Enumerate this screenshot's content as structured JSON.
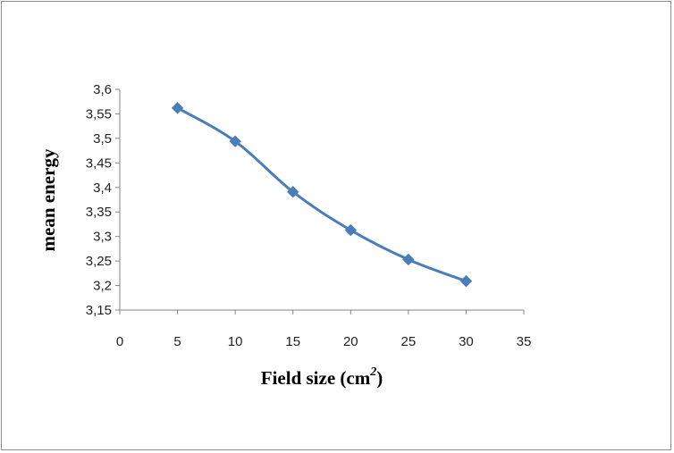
{
  "chart_data": {
    "type": "line",
    "xlabel": "Field size (cm",
    "xlabel_sup": "2",
    "xlabel_close": ")",
    "ylabel": "mean energy",
    "xlim": [
      0,
      35
    ],
    "ylim": [
      3.15,
      3.6
    ],
    "x_ticks": [
      "0",
      "5",
      "10",
      "15",
      "20",
      "25",
      "30",
      "35"
    ],
    "y_ticks": [
      "3,15",
      "3,2",
      "3,25",
      "3,3",
      "3,35",
      "3,4",
      "3,45",
      "3,5",
      "3,55",
      "3,6"
    ],
    "grid": false,
    "series": [
      {
        "color": "#4a7ebb",
        "marker": "diamond",
        "x": [
          5,
          10,
          15,
          20,
          25,
          30
        ],
        "y": [
          3.562,
          3.494,
          3.391,
          3.313,
          3.253,
          3.209
        ]
      }
    ]
  }
}
